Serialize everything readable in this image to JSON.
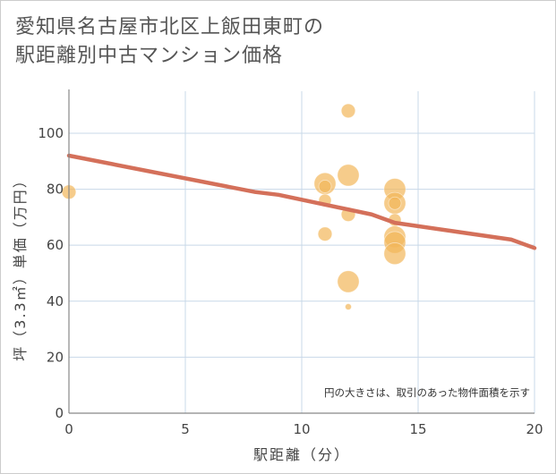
{
  "title": {
    "line1": "愛知県名古屋市北区上飯田東町の",
    "line2": "駅距離別中古マンション価格"
  },
  "chart_data": {
    "type": "scatter",
    "title": "愛知県名古屋市北区上飯田東町の駅距離別中古マンション価格",
    "xlabel": "駅距離（分）",
    "ylabel": "坪（3.3㎡）単価（万円）",
    "xlim": [
      0,
      20
    ],
    "ylim": [
      0,
      115
    ],
    "xticks": [
      0,
      5,
      10,
      15,
      20
    ],
    "yticks": [
      0,
      20,
      40,
      60,
      80,
      100
    ],
    "grid": true,
    "note": "円の大きさは、取引のあった物件面積を示す",
    "colors": {
      "bubble": "#f2b75a",
      "trend": "#d4705a",
      "grid": "#c8d8e8",
      "axis": "#888888"
    },
    "bubbles": [
      {
        "x": 0,
        "y": 79,
        "size": 5
      },
      {
        "x": 11,
        "y": 82,
        "size": 12
      },
      {
        "x": 11,
        "y": 81,
        "size": 4
      },
      {
        "x": 11,
        "y": 76,
        "size": 4
      },
      {
        "x": 11,
        "y": 64,
        "size": 5
      },
      {
        "x": 12,
        "y": 108,
        "size": 5
      },
      {
        "x": 12,
        "y": 85,
        "size": 12
      },
      {
        "x": 12,
        "y": 71,
        "size": 5
      },
      {
        "x": 12,
        "y": 47,
        "size": 12
      },
      {
        "x": 12,
        "y": 38,
        "size": 1
      },
      {
        "x": 14,
        "y": 80,
        "size": 12
      },
      {
        "x": 14,
        "y": 75,
        "size": 12
      },
      {
        "x": 14,
        "y": 75,
        "size": 4
      },
      {
        "x": 14,
        "y": 69,
        "size": 4
      },
      {
        "x": 14,
        "y": 63,
        "size": 12
      },
      {
        "x": 14,
        "y": 61,
        "size": 12
      },
      {
        "x": 14,
        "y": 57,
        "size": 12
      }
    ],
    "trend": {
      "x": [
        0,
        8,
        9,
        13,
        14,
        19,
        20
      ],
      "y": [
        92,
        79,
        78,
        71,
        68,
        62,
        59
      ]
    }
  }
}
